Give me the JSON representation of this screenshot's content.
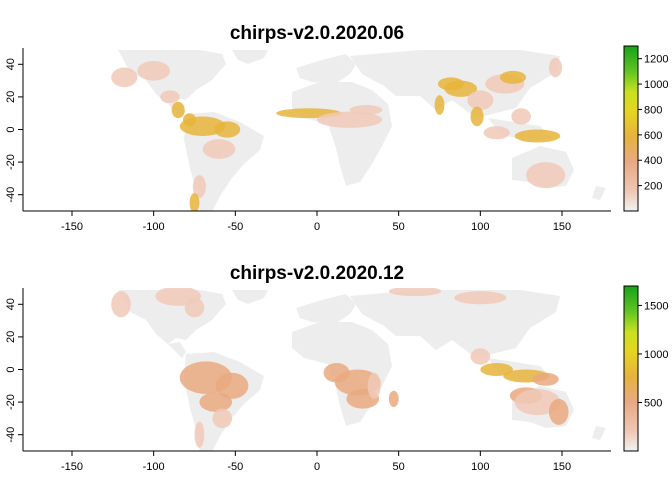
{
  "figure": {
    "panels": [
      {
        "title": "chirps-v2.0.2020.06",
        "x_ticks": [
          "-150",
          "-100",
          "-50",
          "0",
          "50",
          "100",
          "150"
        ],
        "y_ticks": [
          "40",
          "20",
          "0",
          "-20",
          "-40"
        ],
        "legend_ticks": [
          "1200",
          "1000",
          "800",
          "600",
          "400",
          "200"
        ],
        "legend_max": 1300
      },
      {
        "title": "chirps-v2.0.2020.12",
        "x_ticks": [
          "-150",
          "-100",
          "-50",
          "0",
          "50",
          "100",
          "150"
        ],
        "y_ticks": [
          "40",
          "20",
          "0",
          "-20",
          "-40"
        ],
        "legend_ticks": [
          "1500",
          "1000",
          "500"
        ],
        "legend_max": 1700
      }
    ]
  },
  "colors": {
    "land_dry": "#ededed",
    "light": "#f0c9b8",
    "medium": "#e9a97f",
    "orange": "#e8b43a",
    "yellow": "#e6e61a",
    "green_light": "#8ad62a",
    "green": "#1aa61a"
  }
}
